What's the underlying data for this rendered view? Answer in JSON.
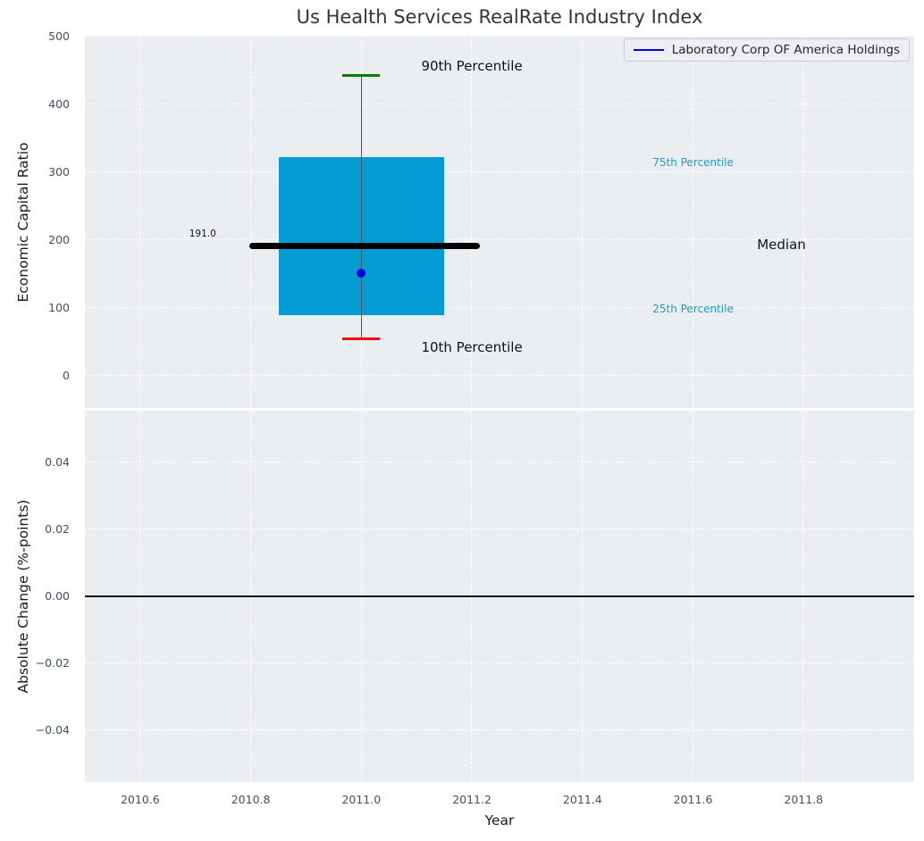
{
  "title": "Us Health Services RealRate Industry Index",
  "legend": {
    "label": "Laboratory Corp OF America Holdings"
  },
  "colors": {
    "figure_bg": "#ffffff",
    "axes_bg": "#ebeef1",
    "grid": "#ffffff",
    "box_fill": "#049cd4",
    "whisker": "#555555",
    "cap_90th": "#008000",
    "cap_10th": "#fe0000",
    "median_line": "#000000",
    "company_point": "#0202e0",
    "legend_line": "#0202e0",
    "tick_label": "#3d5166",
    "axis_label": "#1a1a1a",
    "title_text": "#343434",
    "annotation_dark": "#121212",
    "annotation_percentile": "#2199cb",
    "zero_line": "#000000",
    "legend_bg": "#eceef3",
    "legend_border": "#c9ccd4"
  },
  "chart_data": [
    {
      "type": "box",
      "panel": "top",
      "title": "Us Health Services RealRate Industry Index",
      "ylabel": "Economic Capital Ratio",
      "xlim": [
        2010.5,
        2012.0
      ],
      "ylim": [
        -47,
        501
      ],
      "grid": "white dashed",
      "legend_position": "upper right",
      "x_gridlines": [
        2010.6,
        2010.8,
        2011.0,
        2011.2,
        2011.4,
        2011.6,
        2011.8
      ],
      "y_ticks": [
        {
          "v": 0,
          "label": "0"
        },
        {
          "v": 100,
          "label": "100"
        },
        {
          "v": 200,
          "label": "200"
        },
        {
          "v": 300,
          "label": "300"
        },
        {
          "v": 400,
          "label": "400"
        },
        {
          "v": 500,
          "label": "500"
        }
      ],
      "box": {
        "x": 2011.0,
        "width_years": 0.3,
        "p10": 55,
        "p25": 90,
        "median": 191.0,
        "p75": 322,
        "p90": 443,
        "median_span_years": [
          2010.797,
          2011.214
        ],
        "cap_width_years": 0.034
      },
      "company_point": {
        "label": "Laboratory Corp OF America Holdings",
        "x": 2011.0,
        "y": 152
      },
      "annotations": [
        {
          "text": "90th Percentile",
          "x": 2011.2,
          "y": 456,
          "style": "big"
        },
        {
          "text": "10th Percentile",
          "x": 2011.2,
          "y": 42,
          "style": "big"
        },
        {
          "text": "75th Percentile",
          "x": 2011.6,
          "y": 315,
          "style": "percentile"
        },
        {
          "text": "25th Percentile",
          "x": 2011.6,
          "y": 99,
          "style": "percentile"
        },
        {
          "text": "Median",
          "x": 2011.76,
          "y": 194,
          "style": "big"
        },
        {
          "text": "191.0",
          "x": 2010.713,
          "y": 209,
          "style": "tiny"
        }
      ]
    },
    {
      "type": "line",
      "panel": "bottom",
      "ylabel": "Absolute Change (%-points)",
      "xlabel": "Year",
      "xlim": [
        2010.5,
        2012.0
      ],
      "ylim": [
        -0.0555,
        0.0555
      ],
      "grid": "white dashed",
      "x_ticks": [
        {
          "v": 2010.6,
          "label": "2010.6"
        },
        {
          "v": 2010.8,
          "label": "2010.8"
        },
        {
          "v": 2011.0,
          "label": "2011.0"
        },
        {
          "v": 2011.2,
          "label": "2011.2"
        },
        {
          "v": 2011.4,
          "label": "2011.4"
        },
        {
          "v": 2011.6,
          "label": "2011.6"
        },
        {
          "v": 2011.8,
          "label": "2011.8"
        }
      ],
      "y_ticks": [
        {
          "v": 0.04,
          "label": "0.04"
        },
        {
          "v": 0.02,
          "label": "0.02"
        },
        {
          "v": 0.0,
          "label": "0.00"
        },
        {
          "v": -0.02,
          "label": "−0.02"
        },
        {
          "v": -0.04,
          "label": "−0.04"
        }
      ],
      "zero_line": 0.0,
      "series": []
    }
  ]
}
